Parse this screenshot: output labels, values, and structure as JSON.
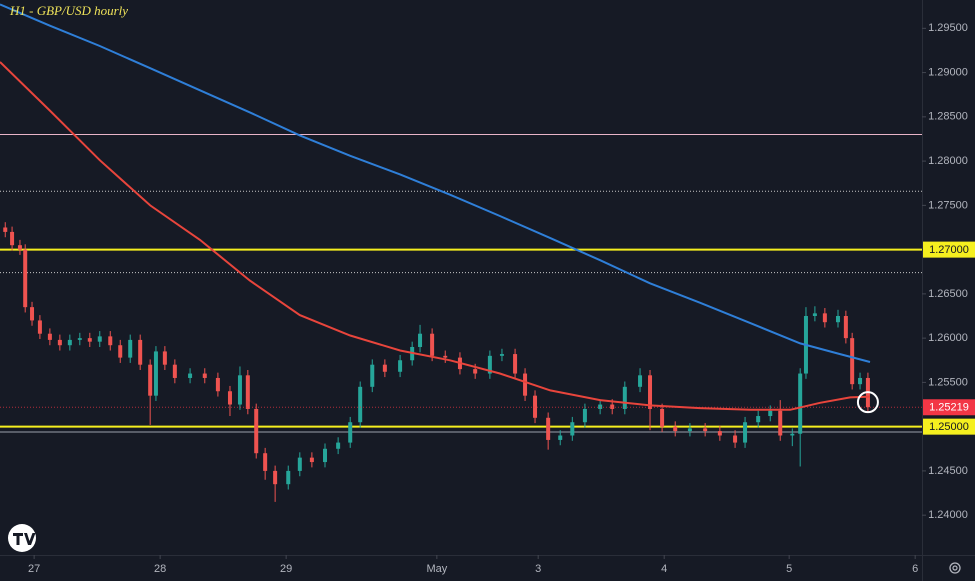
{
  "chart_data": {
    "type": "candlestick",
    "title": "H1 - GBP/USD hourly",
    "background": "#161a25",
    "up_color": "#26a69a",
    "down_color": "#ef5350",
    "xlim": [
      0,
      175.6
    ],
    "xticks": [
      {
        "value": 6.5,
        "label": "27"
      },
      {
        "value": 30.5,
        "label": "28"
      },
      {
        "value": 54.5,
        "label": "29"
      },
      {
        "value": 83.2,
        "label": "May"
      },
      {
        "value": 102.5,
        "label": "3"
      },
      {
        "value": 126.5,
        "label": "4"
      },
      {
        "value": 150.3,
        "label": "5"
      },
      {
        "value": 174.3,
        "label": "6"
      }
    ],
    "ylim": [
      1.2355,
      1.2982
    ],
    "yticks": [
      {
        "value": 1.295,
        "label": "1.29500"
      },
      {
        "value": 1.29,
        "label": "1.29000"
      },
      {
        "value": 1.285,
        "label": "1.28500"
      },
      {
        "value": 1.28,
        "label": "1.28000"
      },
      {
        "value": 1.275,
        "label": "1.27500"
      },
      {
        "value": 1.265,
        "label": "1.26500"
      },
      {
        "value": 1.26,
        "label": "1.26000"
      },
      {
        "value": 1.255,
        "label": "1.25500"
      },
      {
        "value": 1.245,
        "label": "1.24500"
      },
      {
        "value": 1.24,
        "label": "1.24000"
      }
    ],
    "x": [
      1.0,
      2.3,
      3.8,
      4.8,
      6.1,
      7.6,
      9.5,
      11.4,
      13.3,
      15.2,
      17.1,
      19.0,
      21.0,
      22.9,
      24.8,
      26.7,
      28.6,
      29.7,
      31.4,
      33.3,
      36.2,
      39.0,
      41.5,
      43.8,
      45.7,
      47.2,
      48.8,
      50.5,
      52.4,
      54.9,
      57.1,
      59.4,
      61.9,
      64.4,
      66.7,
      68.6,
      70.9,
      73.3,
      76.2,
      78.5,
      80.0,
      82.3,
      84.8,
      87.6,
      90.5,
      93.3,
      95.6,
      98.1,
      100.0,
      101.9,
      104.4,
      106.7,
      109.0,
      111.4,
      114.3,
      116.6,
      119.0,
      121.9,
      123.8,
      126.1,
      128.6,
      131.4,
      134.3,
      137.1,
      140.0,
      141.9,
      144.4,
      146.7,
      148.6,
      150.9,
      152.4,
      153.5,
      155.2,
      157.1,
      159.6,
      161.1,
      162.3,
      163.8,
      165.3
    ],
    "open": [
      1.2725,
      1.272,
      1.2705,
      1.27,
      1.2635,
      1.262,
      1.2605,
      1.2598,
      1.2592,
      1.2598,
      1.26,
      1.2596,
      1.2602,
      1.2592,
      1.2578,
      1.2598,
      1.257,
      1.2535,
      1.2585,
      1.257,
      1.2555,
      1.256,
      1.2555,
      1.254,
      1.2525,
      1.2558,
      1.252,
      1.247,
      1.245,
      1.2435,
      1.245,
      1.2465,
      1.246,
      1.2475,
      1.2482,
      1.2505,
      1.2545,
      1.257,
      1.2562,
      1.2575,
      1.259,
      1.2605,
      1.258,
      1.2578,
      1.2565,
      1.256,
      1.258,
      1.2582,
      1.256,
      1.2535,
      1.251,
      1.2485,
      1.249,
      1.2505,
      1.252,
      1.2525,
      1.252,
      1.2545,
      1.2558,
      1.252,
      1.25,
      1.2495,
      1.2498,
      1.2495,
      1.249,
      1.2482,
      1.2505,
      1.2512,
      1.2518,
      1.249,
      1.2492,
      1.256,
      1.2625,
      1.2628,
      1.2618,
      1.2625,
      1.26,
      1.2548,
      1.2555
    ],
    "high": [
      1.2731,
      1.2726,
      1.2711,
      1.2706,
      1.2641,
      1.2626,
      1.2611,
      1.2604,
      1.2604,
      1.2606,
      1.2606,
      1.2608,
      1.2608,
      1.2598,
      1.2604,
      1.2604,
      1.2576,
      1.2591,
      1.2591,
      1.2576,
      1.2566,
      1.2566,
      1.2561,
      1.2546,
      1.2568,
      1.2564,
      1.2526,
      1.2476,
      1.2456,
      1.2456,
      1.2471,
      1.2471,
      1.2481,
      1.2488,
      1.2511,
      1.2551,
      1.2576,
      1.2576,
      1.2581,
      1.2596,
      1.2615,
      1.2611,
      1.2586,
      1.2584,
      1.2571,
      1.2586,
      1.2588,
      1.2588,
      1.2566,
      1.2541,
      1.2516,
      1.2496,
      1.2511,
      1.2526,
      1.2531,
      1.2531,
      1.2551,
      1.2566,
      1.2564,
      1.2526,
      1.2506,
      1.2504,
      1.2504,
      1.2501,
      1.2496,
      1.2511,
      1.2518,
      1.2524,
      1.253,
      1.2498,
      1.2566,
      1.2635,
      1.2636,
      1.2634,
      1.2632,
      1.2631,
      1.2606,
      1.2561,
      1.2561
    ],
    "low": [
      1.2714,
      1.2699,
      1.2694,
      1.2629,
      1.2614,
      1.2599,
      1.2592,
      1.2586,
      1.2586,
      1.2592,
      1.259,
      1.259,
      1.2586,
      1.2572,
      1.2572,
      1.2564,
      1.2502,
      1.2529,
      1.2564,
      1.2549,
      1.2549,
      1.2549,
      1.2534,
      1.2512,
      1.2519,
      1.2514,
      1.2464,
      1.244,
      1.2415,
      1.2429,
      1.2444,
      1.2454,
      1.2454,
      1.2469,
      1.2476,
      1.2499,
      1.2539,
      1.2556,
      1.2556,
      1.2569,
      1.2584,
      1.2574,
      1.2572,
      1.2559,
      1.2554,
      1.2554,
      1.2574,
      1.2554,
      1.2529,
      1.2504,
      1.2474,
      1.2479,
      1.2484,
      1.2499,
      1.2514,
      1.2514,
      1.2514,
      1.2539,
      1.2496,
      1.2494,
      1.2489,
      1.2489,
      1.2489,
      1.2484,
      1.2476,
      1.2476,
      1.2499,
      1.2506,
      1.2484,
      1.2478,
      1.2455,
      1.2554,
      1.2619,
      1.2612,
      1.2612,
      1.2594,
      1.2542,
      1.2542,
      1.2516
    ],
    "close": [
      1.272,
      1.2705,
      1.27,
      1.2635,
      1.262,
      1.2605,
      1.2598,
      1.2592,
      1.2598,
      1.26,
      1.2596,
      1.2602,
      1.2592,
      1.2578,
      1.2598,
      1.257,
      1.2535,
      1.2585,
      1.257,
      1.2555,
      1.256,
      1.2555,
      1.254,
      1.2525,
      1.2558,
      1.252,
      1.247,
      1.245,
      1.2435,
      1.245,
      1.2465,
      1.246,
      1.2475,
      1.2482,
      1.2505,
      1.2545,
      1.257,
      1.2562,
      1.2575,
      1.259,
      1.2605,
      1.258,
      1.2578,
      1.2565,
      1.256,
      1.258,
      1.2582,
      1.256,
      1.2535,
      1.251,
      1.2485,
      1.249,
      1.2505,
      1.252,
      1.2525,
      1.252,
      1.2545,
      1.2558,
      1.252,
      1.25,
      1.2495,
      1.2498,
      1.2495,
      1.249,
      1.2482,
      1.2505,
      1.2512,
      1.2518,
      1.249,
      1.2492,
      1.256,
      1.2625,
      1.2628,
      1.2618,
      1.2625,
      1.26,
      1.2548,
      1.2555,
      1.2522
    ],
    "series": [
      {
        "color": "#2f7fd8",
        "x": [
          0,
          9.5,
          19,
          28.6,
          38.1,
          47.6,
          57.1,
          66.7,
          76.2,
          85.7,
          95.2,
          104.8,
          114.3,
          123.8,
          133.3,
          142.9,
          152.4,
          160,
          165.7
        ],
        "values": [
          1.2977,
          1.2953,
          1.293,
          1.2905,
          1.288,
          1.2855,
          1.2829,
          1.2806,
          1.2785,
          1.2762,
          1.2738,
          1.2713,
          1.2688,
          1.2662,
          1.264,
          1.2617,
          1.2594,
          1.2582,
          1.2573
        ]
      },
      {
        "color": "#e8453c",
        "x": [
          0,
          9.5,
          19,
          28.6,
          38.1,
          47.6,
          57.1,
          66.7,
          76.2,
          85.7,
          95.2,
          104.8,
          114.3,
          123.8,
          133.3,
          142.9,
          150.5,
          156.2,
          161.9,
          165.7
        ],
        "values": [
          1.2912,
          1.2857,
          1.2801,
          1.275,
          1.2711,
          1.2665,
          1.2626,
          1.2603,
          1.2586,
          1.2575,
          1.256,
          1.2541,
          1.253,
          1.2524,
          1.2521,
          1.2519,
          1.2519,
          1.2527,
          1.2533,
          1.2534
        ]
      }
    ],
    "levels": [
      {
        "value": 1.27,
        "color": "#f5ef1f",
        "style": "solid",
        "width": 2,
        "label": "1.27000"
      },
      {
        "value": 1.25,
        "color": "#f5ef1f",
        "style": "solid",
        "width": 2,
        "label": "1.25000"
      },
      {
        "value": 1.283,
        "color": "#e8b4c8",
        "style": "solid",
        "width": 1
      },
      {
        "value": 1.2766,
        "color": "#c8c8c8",
        "style": "dotted",
        "width": 1
      },
      {
        "value": 1.2674,
        "color": "#c8c8c8",
        "style": "dotted",
        "width": 1
      },
      {
        "value": 1.2494,
        "color": "#9aa0aa",
        "style": "solid",
        "width": 1
      }
    ],
    "last_price": {
      "value": 1.25219,
      "label": "1.25219",
      "color": "#f23645"
    }
  }
}
